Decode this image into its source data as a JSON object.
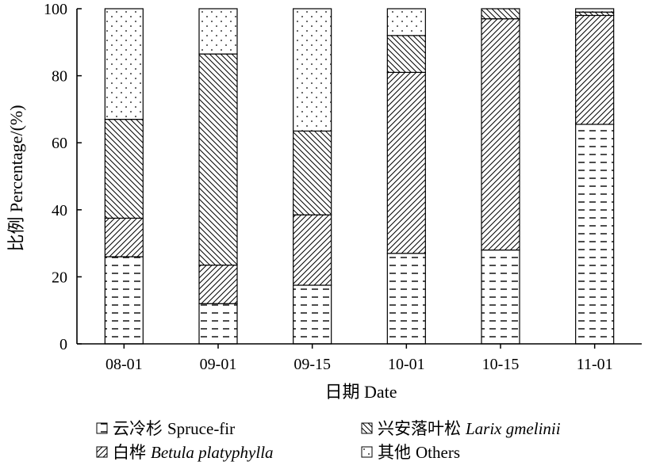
{
  "chart_data": {
    "type": "bar",
    "stacked": true,
    "categories": [
      "08-01",
      "09-01",
      "09-15",
      "10-01",
      "10-15",
      "11-01"
    ],
    "series": [
      {
        "name": "云冷杉 Spruce-fir",
        "name_cn": "云冷杉",
        "name_latin": "Spruce-fir",
        "pattern": "dashes",
        "values": [
          26,
          12,
          17.5,
          27,
          28,
          65.5
        ]
      },
      {
        "name": "白桦 Betula platyphylla",
        "name_cn": "白桦",
        "name_latin": "Betula platyphylla",
        "pattern": "hatch-ne",
        "values": [
          11.5,
          11.5,
          21,
          54,
          69,
          32.5
        ]
      },
      {
        "name": "兴安落叶松 Larix gmelinii",
        "name_cn": "兴安落叶松",
        "name_latin": "Larix gmelinii",
        "pattern": "hatch-se",
        "values": [
          29.5,
          63,
          25,
          11,
          3,
          1
        ]
      },
      {
        "name": "其他 Others",
        "name_cn": "其他",
        "name_latin": "Others",
        "pattern": "dots",
        "values": [
          33,
          13.5,
          36.5,
          8,
          0,
          1
        ]
      }
    ],
    "title": "",
    "xlabel": "日期 Date",
    "ylabel": "比例 Percentage/(%)",
    "ylim": [
      0,
      100
    ],
    "yticks": [
      0,
      20,
      40,
      60,
      80,
      100
    ],
    "grid": false,
    "legend_position": "bottom"
  }
}
